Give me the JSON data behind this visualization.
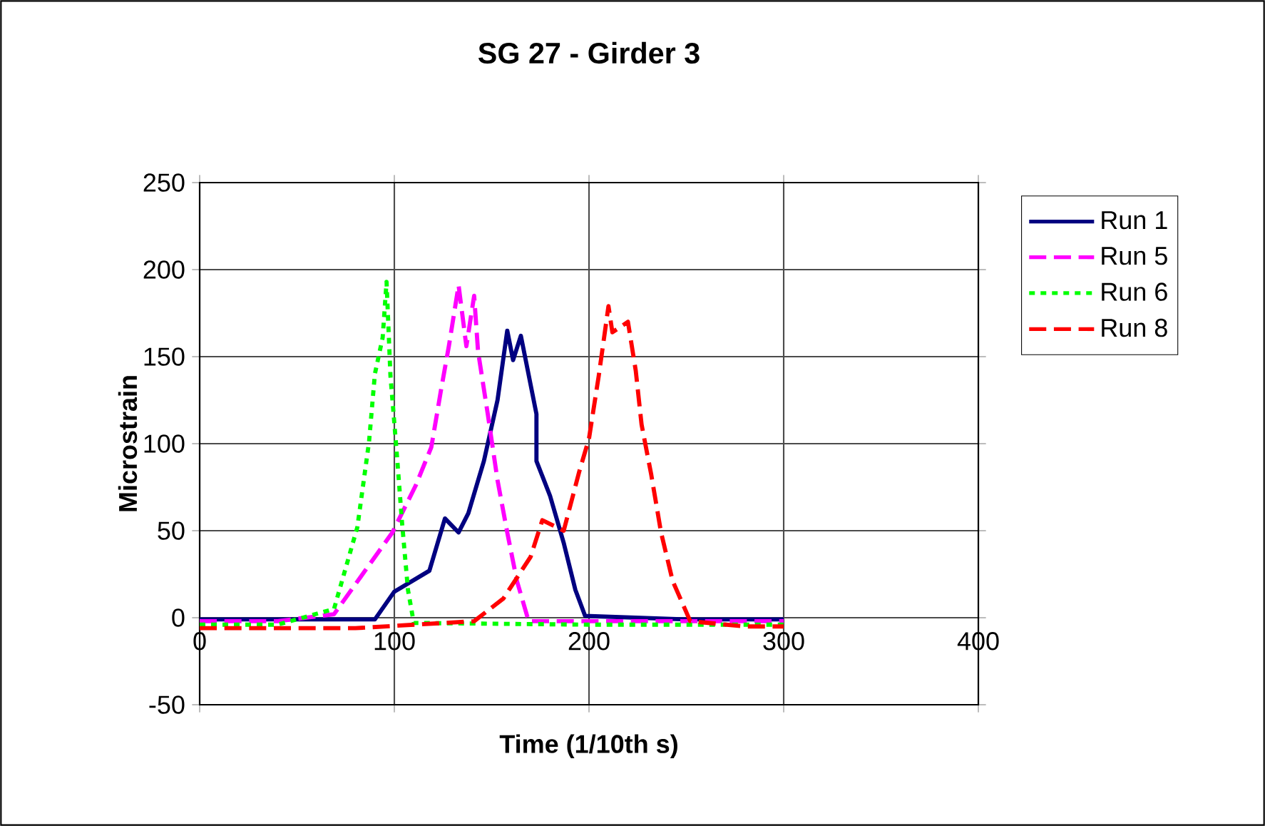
{
  "chart_data": {
    "type": "line",
    "title": "SG 27 - Girder 3",
    "xlabel": "Time (1/10th s)",
    "ylabel": "Microstrain",
    "xlim": [
      0,
      400
    ],
    "xticks": [
      0,
      100,
      200,
      300,
      400
    ],
    "ylim": [
      -50,
      250
    ],
    "yticks": [
      -50,
      0,
      50,
      100,
      150,
      200,
      250
    ],
    "grid": true,
    "legend": "right",
    "marker": "none",
    "series": [
      {
        "name": "Run 1",
        "color": "#000080",
        "line_style": "solid",
        "x": [
          0,
          60,
          90,
          100,
          118,
          126,
          133,
          138,
          146,
          153,
          158,
          161,
          165,
          173,
          173,
          180,
          187,
          193,
          198,
          250,
          300
        ],
        "values": [
          -1,
          -1,
          -1,
          15,
          27,
          57,
          49,
          60,
          90,
          125,
          165,
          148,
          162,
          117,
          90,
          70,
          43,
          16,
          1,
          -1,
          -1
        ]
      },
      {
        "name": "Run 5",
        "color": "#ff00ff",
        "line_style": "dashed",
        "x": [
          0,
          40,
          69,
          99,
          111,
          119,
          124,
          128,
          133,
          137,
          141,
          143,
          148,
          153,
          158,
          163,
          169,
          230,
          300
        ],
        "values": [
          -2,
          -2,
          2,
          49,
          76,
          98,
          131,
          156,
          191,
          156,
          185,
          153,
          117,
          79,
          49,
          21,
          -2,
          -2,
          -2
        ]
      },
      {
        "name": "Run 6",
        "color": "#00ff00",
        "line_style": "dotted",
        "x": [
          0,
          40,
          69,
          81,
          87,
          90,
          94,
          96,
          98,
          101,
          104,
          107,
          110,
          200,
          300
        ],
        "values": [
          -4,
          -4,
          5,
          52,
          101,
          140,
          161,
          193,
          139,
          98,
          54,
          16,
          -3,
          -4,
          -4
        ]
      },
      {
        "name": "Run 8",
        "color": "#ff0000",
        "line_style": "dashed",
        "x": [
          0,
          80,
          141,
          156,
          170,
          176,
          187,
          195,
          200,
          205,
          210,
          212,
          220,
          224,
          227,
          232,
          237,
          243,
          252,
          280,
          300
        ],
        "values": [
          -6,
          -6,
          -2,
          11,
          35,
          56,
          50,
          84,
          103,
          139,
          179,
          164,
          170,
          142,
          111,
          82,
          49,
          21,
          -2,
          -5,
          -5
        ]
      }
    ]
  }
}
